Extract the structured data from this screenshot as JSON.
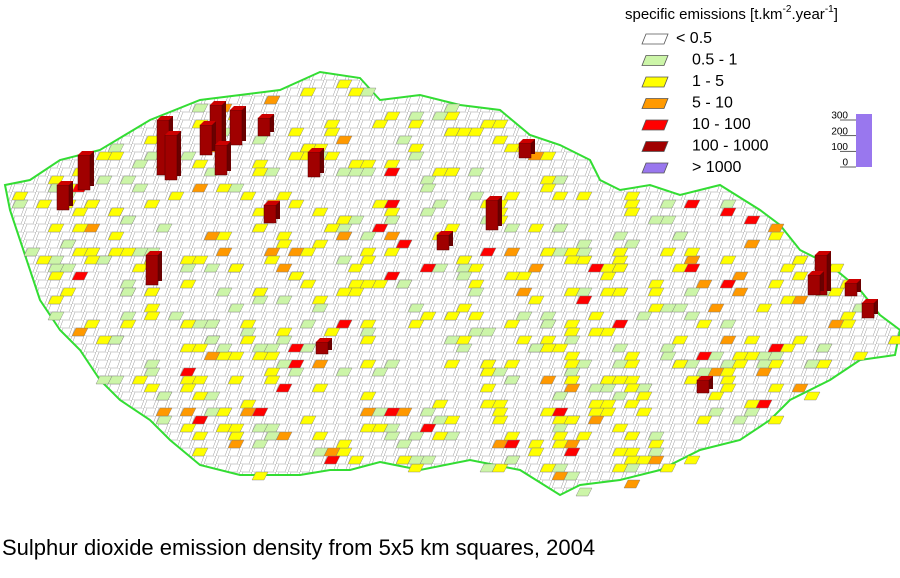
{
  "legend": {
    "title_parts": [
      "specific emissions [t.km",
      "-2",
      ".year",
      "-1",
      "]"
    ],
    "items": [
      {
        "label": "< 0.5",
        "color": "#ffffff"
      },
      {
        "label": "0.5 - 1",
        "color": "#ccf5a8"
      },
      {
        "label": "1 - 5",
        "color": "#ffff00"
      },
      {
        "label": "5 - 10",
        "color": "#ff9900"
      },
      {
        "label": "10 - 100",
        "color": "#ff0000"
      },
      {
        "label": "100 - 1000",
        "color": "#a00000"
      },
      {
        "label": "> 1000",
        "color": "#9977ee"
      }
    ]
  },
  "scale": {
    "ticks": [
      300,
      200,
      100,
      0
    ],
    "color": "#9977ee"
  },
  "caption": "Sulphur dioxide emission density from 5x5 km squares, 2004"
}
